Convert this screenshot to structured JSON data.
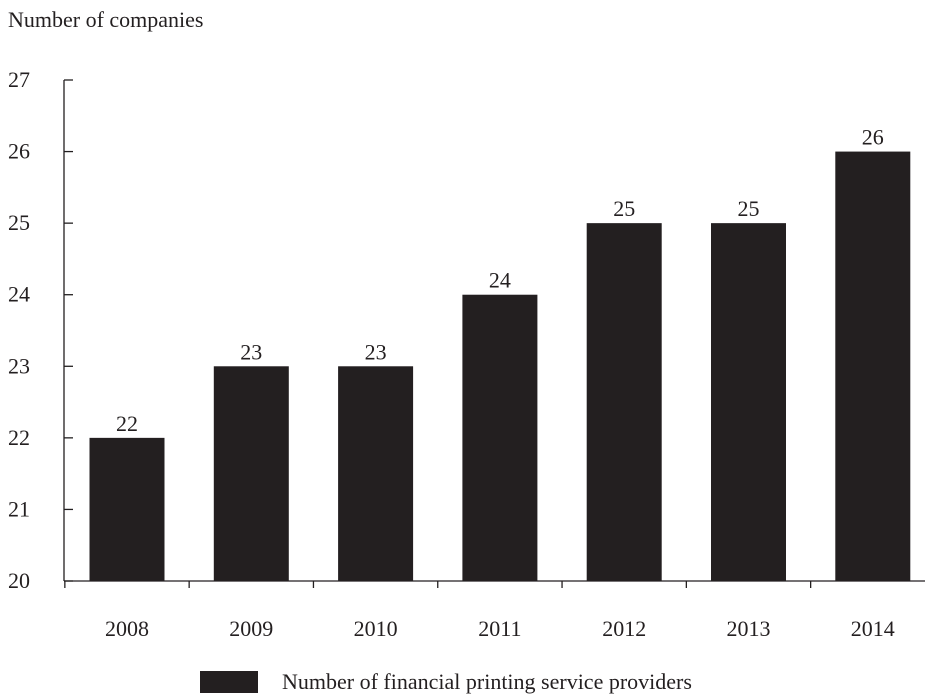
{
  "chart_data": {
    "type": "bar",
    "title": "",
    "ylabel": "Number of companies",
    "xlabel": "",
    "categories": [
      "2008",
      "2009",
      "2010",
      "2011",
      "2012",
      "2013",
      "2014"
    ],
    "series": [
      {
        "name": "Number of financial printing service providers",
        "values": [
          22,
          23,
          23,
          24,
          25,
          25,
          26
        ],
        "color": "#231f20"
      }
    ],
    "data_labels": [
      "22",
      "23",
      "23",
      "24",
      "25",
      "25",
      "26"
    ],
    "y_ticks": [
      "20",
      "21",
      "22",
      "23",
      "24",
      "25",
      "26",
      "27"
    ],
    "ylim": [
      20,
      27
    ],
    "grid": false,
    "legend_position": "bottom-center"
  }
}
